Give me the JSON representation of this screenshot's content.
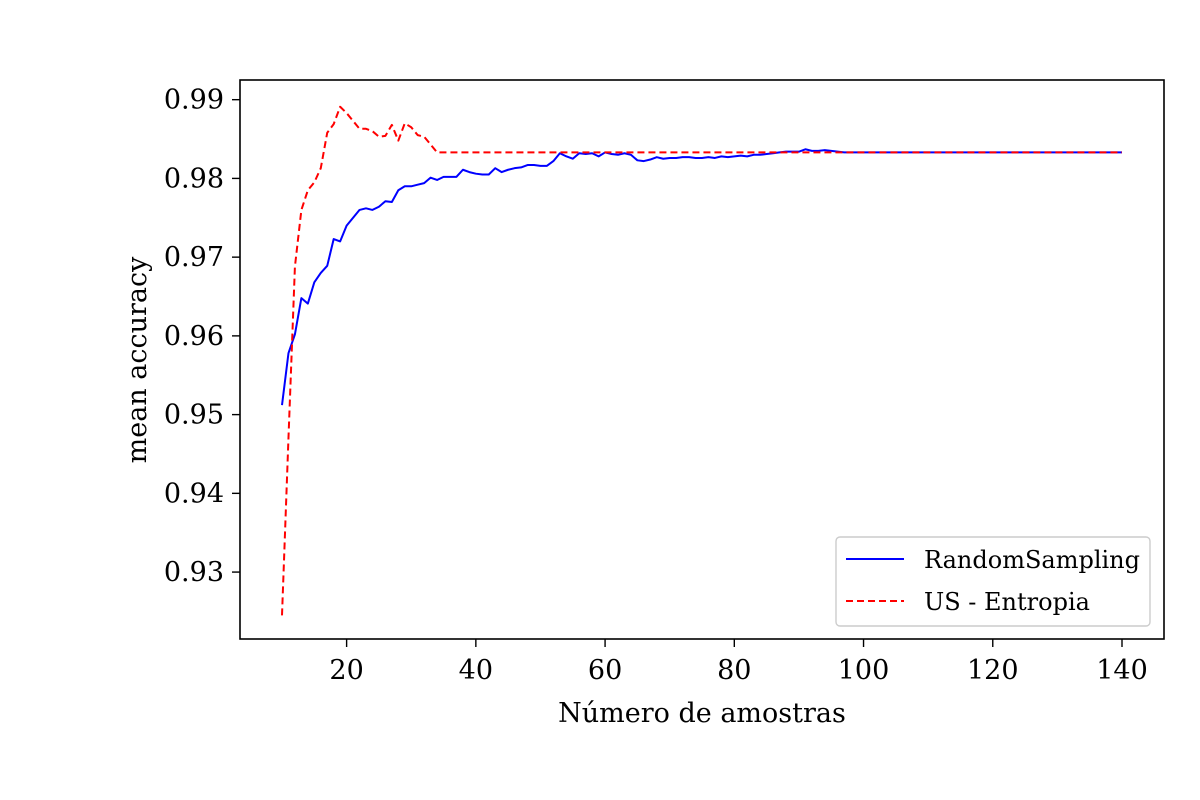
{
  "chart_data": {
    "type": "line",
    "title": "",
    "xlabel": "Número de amostras",
    "ylabel": "mean accuracy",
    "xlim": [
      3.5,
      146.5
    ],
    "ylim": [
      0.9215,
      0.9925
    ],
    "xticks": [
      20,
      40,
      60,
      80,
      100,
      120,
      140
    ],
    "yticks": [
      0.93,
      0.94,
      0.95,
      0.96,
      0.97,
      0.98,
      0.99
    ],
    "xtick_labels": [
      "20",
      "40",
      "60",
      "80",
      "100",
      "120",
      "140"
    ],
    "ytick_labels": [
      "0.93",
      "0.94",
      "0.95",
      "0.96",
      "0.97",
      "0.98",
      "0.99"
    ],
    "grid": false,
    "legend_position": "lower-right",
    "series": [
      {
        "name": "RandomSampling",
        "color": "#0000ff",
        "style": "solid",
        "x": [
          10,
          11,
          12,
          13,
          14,
          15,
          16,
          17,
          18,
          19,
          20,
          21,
          22,
          23,
          24,
          25,
          26,
          27,
          28,
          29,
          30,
          31,
          32,
          33,
          34,
          35,
          36,
          37,
          38,
          39,
          40,
          41,
          42,
          43,
          44,
          45,
          46,
          47,
          48,
          49,
          50,
          51,
          52,
          53,
          54,
          55,
          56,
          57,
          58,
          59,
          60,
          61,
          62,
          63,
          64,
          65,
          66,
          67,
          68,
          69,
          70,
          71,
          72,
          73,
          74,
          75,
          76,
          77,
          78,
          79,
          80,
          81,
          82,
          83,
          84,
          85,
          86,
          87,
          88,
          89,
          90,
          91,
          92,
          93,
          94,
          95,
          96,
          97,
          140
        ],
        "values": [
          0.9512,
          0.9578,
          0.9602,
          0.9648,
          0.9641,
          0.9668,
          0.968,
          0.9689,
          0.9723,
          0.972,
          0.974,
          0.975,
          0.976,
          0.9762,
          0.976,
          0.9764,
          0.9771,
          0.977,
          0.9785,
          0.979,
          0.979,
          0.9792,
          0.9794,
          0.9801,
          0.9798,
          0.9802,
          0.9802,
          0.9802,
          0.9811,
          0.9808,
          0.9806,
          0.9805,
          0.9805,
          0.9813,
          0.9808,
          0.9811,
          0.9813,
          0.9814,
          0.9817,
          0.9817,
          0.9816,
          0.9816,
          0.9822,
          0.9832,
          0.9828,
          0.9825,
          0.9832,
          0.9831,
          0.9832,
          0.9828,
          0.9833,
          0.9831,
          0.983,
          0.9832,
          0.983,
          0.9823,
          0.9822,
          0.9824,
          0.9827,
          0.9825,
          0.9826,
          0.9826,
          0.9827,
          0.9827,
          0.9826,
          0.9826,
          0.9827,
          0.9826,
          0.9828,
          0.9827,
          0.9828,
          0.9829,
          0.9828,
          0.983,
          0.983,
          0.9831,
          0.9832,
          0.9833,
          0.9834,
          0.9834,
          0.9834,
          0.9837,
          0.9835,
          0.9835,
          0.9836,
          0.9835,
          0.9834,
          0.9833,
          0.9833
        ]
      },
      {
        "name": "US - Entropia",
        "color": "#ff0000",
        "style": "dashed",
        "x": [
          10,
          11,
          12,
          13,
          14,
          15,
          16,
          17,
          18,
          19,
          20,
          21,
          22,
          23,
          24,
          25,
          26,
          27,
          28,
          29,
          30,
          31,
          32,
          33,
          34,
          35,
          36,
          140
        ],
        "values": [
          0.9245,
          0.947,
          0.9688,
          0.976,
          0.9785,
          0.9795,
          0.9813,
          0.9858,
          0.9869,
          0.9891,
          0.9883,
          0.9873,
          0.9863,
          0.9863,
          0.986,
          0.9853,
          0.9854,
          0.9868,
          0.9848,
          0.987,
          0.9865,
          0.9855,
          0.9853,
          0.9843,
          0.9833,
          0.9833,
          0.9833,
          0.9833
        ]
      }
    ]
  }
}
